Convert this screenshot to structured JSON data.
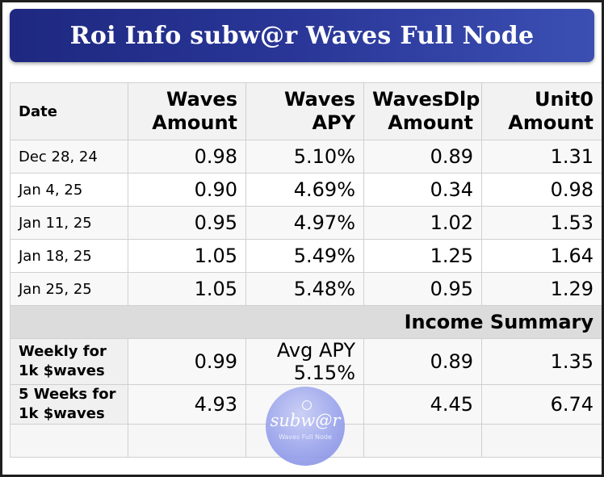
{
  "title": "Roi Info subw@r Waves Full Node",
  "table": {
    "headers": [
      "Date",
      "Waves Amount",
      "Waves APY",
      "WavesDlp Amount",
      "Unit0 Amount"
    ],
    "rows": [
      {
        "date": "Dec 28, 24",
        "waves": "0.98",
        "apy": "5.10%",
        "dlp": "0.89",
        "unit0": "1.31"
      },
      {
        "date": "Jan 4, 25",
        "waves": "0.90",
        "apy": "4.69%",
        "dlp": "0.34",
        "unit0": "0.98"
      },
      {
        "date": "Jan 11, 25",
        "waves": "0.95",
        "apy": "4.97%",
        "dlp": "1.02",
        "unit0": "1.53"
      },
      {
        "date": "Jan 18, 25",
        "waves": "1.05",
        "apy": "5.49%",
        "dlp": "1.25",
        "unit0": "1.64"
      },
      {
        "date": "Jan 25, 25",
        "waves": "1.05",
        "apy": "5.48%",
        "dlp": "0.95",
        "unit0": "1.29"
      }
    ],
    "summary_label": "Income Summary",
    "weekly": {
      "label": "Weekly for 1k $waves",
      "waves": "0.99",
      "apy_label": "Avg APY",
      "apy": "5.15%",
      "dlp": "0.89",
      "unit0": "1.35"
    },
    "five_weeks": {
      "label": "5 Weeks for 1k $waves",
      "waves": "4.93",
      "dlp": "4.45",
      "unit0": "6.74"
    }
  },
  "watermark": {
    "name": "subw@r",
    "tagline": "Waves Full Node",
    "icon": "node-logo-icon"
  }
}
